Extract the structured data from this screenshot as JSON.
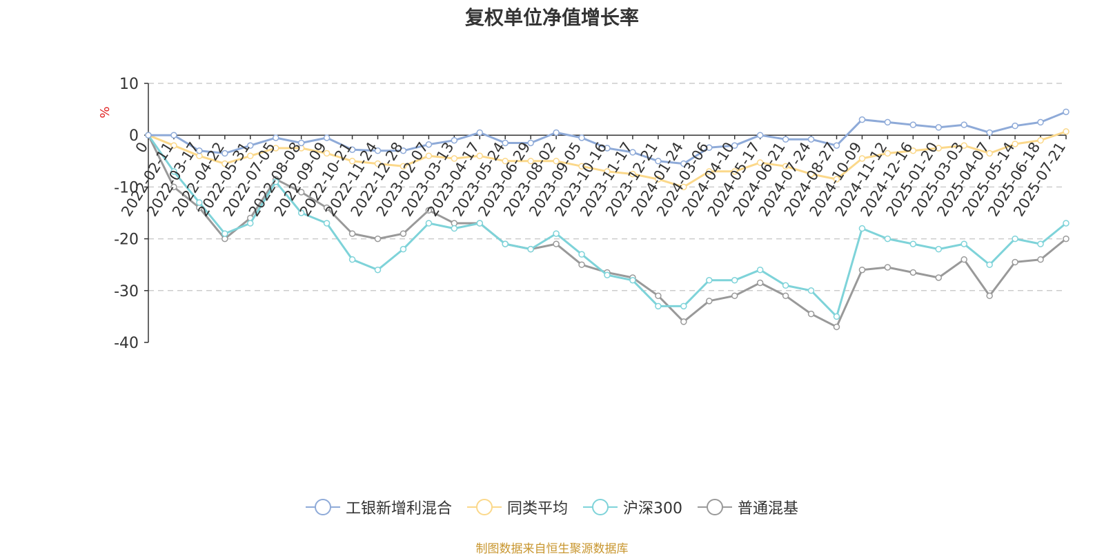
{
  "title": "复权单位净值增长率",
  "source_note": "制图数据来自恒生聚源数据库",
  "legend": [
    {
      "name": "工银新增利混合",
      "color": "#8eaad8"
    },
    {
      "name": "同类平均",
      "color": "#fbd88a"
    },
    {
      "name": "沪深300",
      "color": "#7ed3d9"
    },
    {
      "name": "普通混基",
      "color": "#999999"
    }
  ],
  "chart_data": {
    "type": "line",
    "title": "复权单位净值增长率",
    "ylabel": "%",
    "ylim": [
      -40,
      10
    ],
    "yticks": [
      10,
      0,
      -10,
      -20,
      -30,
      -40
    ],
    "grid": true,
    "legend_position": "bottom",
    "categories": [
      "0",
      "2022-02-11",
      "2022-03-17",
      "2022-04-22",
      "2022-05-31",
      "2022-07-05",
      "2022-08-08",
      "2022-09-09",
      "2022-10-21",
      "2022-11-24",
      "2022-12-28",
      "2023-02-07",
      "2023-03-13",
      "2023-04-17",
      "2023-05-24",
      "2023-06-29",
      "2023-08-02",
      "2023-09-05",
      "2023-10-16",
      "2023-11-17",
      "2023-12-21",
      "2024-01-24",
      "2024-03-06",
      "2024-04-10",
      "2024-05-17",
      "2024-06-21",
      "2024-07-24",
      "2024-08-27",
      "2024-10-09",
      "2024-11-12",
      "2024-12-16",
      "2025-01-20",
      "2025-03-03",
      "2025-04-07",
      "2025-05-14",
      "2025-06-18",
      "2025-07-21"
    ],
    "series": [
      {
        "name": "工银新增利混合",
        "values": [
          0,
          0,
          -3,
          -3.5,
          -2,
          -0.5,
          -1.5,
          -0.5,
          -2.8,
          -3,
          -3,
          -1.8,
          -1,
          0.5,
          -1.5,
          -1.5,
          0.5,
          -0.5,
          -2.5,
          -3.3,
          -5,
          -5.5,
          -2.4,
          -2,
          0,
          -0.8,
          -0.8,
          -2,
          3,
          2.5,
          2,
          1.5,
          2,
          0.5,
          1.8,
          2.5,
          4.5
        ]
      },
      {
        "name": "同类平均",
        "values": [
          0,
          -2,
          -4,
          -5.5,
          -4,
          -2.5,
          -2.5,
          -3.5,
          -5,
          -5.5,
          -6,
          -4,
          -4.5,
          -4,
          -5,
          -5,
          -5,
          -6,
          -7,
          -7.5,
          -8.5,
          -10,
          -7,
          -7,
          -5.3,
          -6,
          -7.5,
          -8.5,
          -4.5,
          -3.5,
          -3,
          -2.5,
          -2,
          -3.5,
          -1.7,
          -1,
          0.7
        ]
      },
      {
        "name": "沪深300",
        "values": [
          0,
          -7,
          -13,
          -19,
          -17,
          -9,
          -15,
          -17,
          -24,
          -26,
          -22,
          -17,
          -18,
          -17,
          -21,
          -22,
          -19,
          -23,
          -27,
          -28,
          -33,
          -33,
          -28,
          -28,
          -26,
          -29,
          -30,
          -35,
          -18,
          -20,
          -21,
          -22,
          -21,
          -25,
          -20,
          -21,
          -17
        ]
      },
      {
        "name": "普通混基",
        "values": [
          0,
          -10,
          -14,
          -20,
          -16,
          -8.5,
          -11,
          -14,
          -19,
          -20,
          -19,
          -14.5,
          -17,
          -17,
          -21,
          -22,
          -21,
          -25,
          -26.5,
          -27.5,
          -31,
          -36,
          -32,
          -31,
          -28.5,
          -31,
          -34.5,
          -37,
          -26,
          -25.5,
          -26.5,
          -27.5,
          -24,
          -31,
          -24.5,
          -24,
          -20
        ]
      }
    ]
  }
}
